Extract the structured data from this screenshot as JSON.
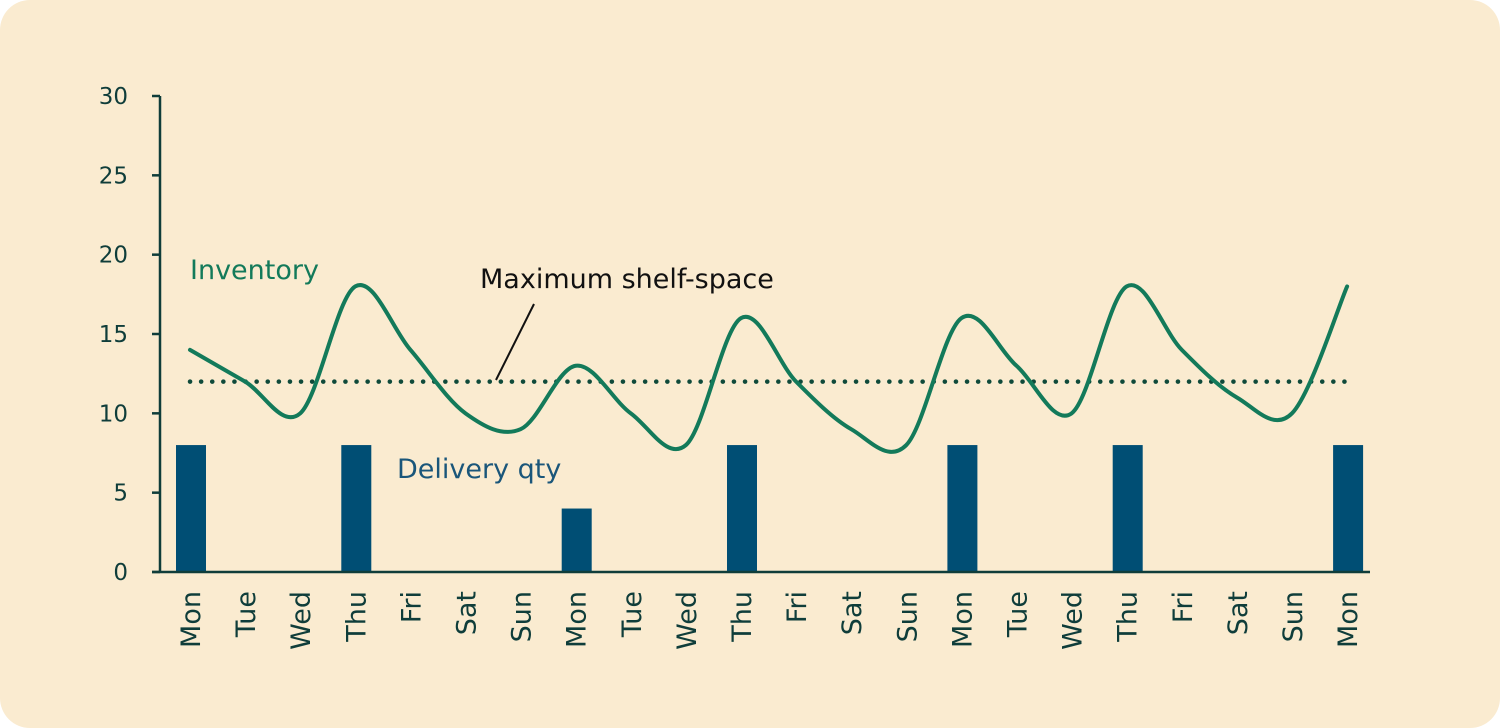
{
  "chart_data": {
    "type": "bar+line",
    "categories": [
      "Mon",
      "Tue",
      "Wed",
      "Thu",
      "Fri",
      "Sat",
      "Sun",
      "Mon",
      "Tue",
      "Wed",
      "Thu",
      "Fri",
      "Sat",
      "Sun",
      "Mon",
      "Tue",
      "Wed",
      "Thu",
      "Fri",
      "Sat",
      "Sun",
      "Mon"
    ],
    "ylim": [
      0,
      30
    ],
    "yticks": [
      0,
      5,
      10,
      15,
      20,
      25,
      30
    ],
    "series": [
      {
        "name": "Delivery qty",
        "kind": "bar",
        "color": "#004e74",
        "values": [
          8,
          0,
          0,
          8,
          0,
          0,
          0,
          4,
          0,
          0,
          8,
          0,
          0,
          0,
          8,
          0,
          0,
          8,
          0,
          0,
          0,
          8
        ]
      },
      {
        "name": "Inventory",
        "kind": "line",
        "color": "#137a5a",
        "values": [
          14,
          12,
          10,
          18,
          14,
          10,
          9,
          13,
          10,
          8,
          16,
          12,
          9,
          8,
          16,
          13,
          10,
          18,
          14,
          11,
          10,
          18
        ]
      }
    ],
    "reference_line": {
      "name": "Maximum shelf-space",
      "value": 12,
      "color": "#0f4a3a"
    },
    "annotations": {
      "inventory": "Inventory",
      "delivery": "Delivery qty",
      "shelf": "Maximum shelf-space"
    }
  },
  "colors": {
    "background": "#faebd0",
    "axis": "#0f3d3a"
  }
}
